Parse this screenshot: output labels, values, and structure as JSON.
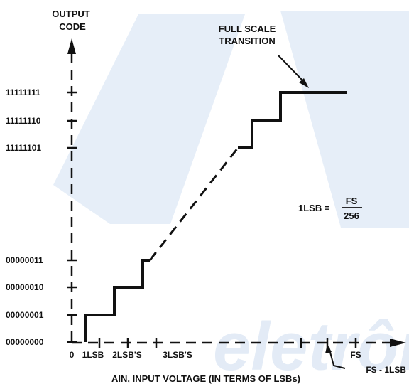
{
  "chart_data": {
    "type": "line",
    "title": "",
    "ylabel": "OUTPUT CODE",
    "xlabel": "AIN, INPUT VOLTAGE (IN TERMS OF LSBs)",
    "y_ticks": [
      "00000000",
      "00000001",
      "00000010",
      "00000011",
      "11111101",
      "11111110",
      "11111111"
    ],
    "x_ticks": [
      "0",
      "1LSB",
      "2LSB'S",
      "3LSB'S",
      "FS - 1LSB",
      "FS"
    ],
    "series": [
      {
        "steps_low": [
          [
            0.0,
            0
          ],
          [
            0.5,
            0
          ],
          [
            0.5,
            1
          ],
          [
            1.5,
            1
          ],
          [
            1.5,
            2
          ],
          [
            2.5,
            2
          ],
          [
            2.5,
            3
          ],
          [
            2.75,
            3
          ]
        ],
        "steps_high": [
          [
            5.85,
            4
          ],
          [
            6.35,
            4
          ],
          [
            6.35,
            5
          ],
          [
            7.35,
            5
          ],
          [
            7.35,
            6
          ],
          [
            8.3,
            6
          ],
          [
            8.3,
            7
          ],
          [
            9.7,
            7
          ]
        ],
        "gap_dashed": [
          [
            2.75,
            3
          ],
          [
            5.85,
            4
          ]
        ]
      }
    ],
    "annotations": {
      "full_scale": "FULL SCALE TRANSITION",
      "formula_lhs": "1LSB =",
      "formula_num": "FS",
      "formula_den": "256",
      "fs_minus_label": "FS – 1LSB"
    }
  },
  "watermark": "eletrônica"
}
